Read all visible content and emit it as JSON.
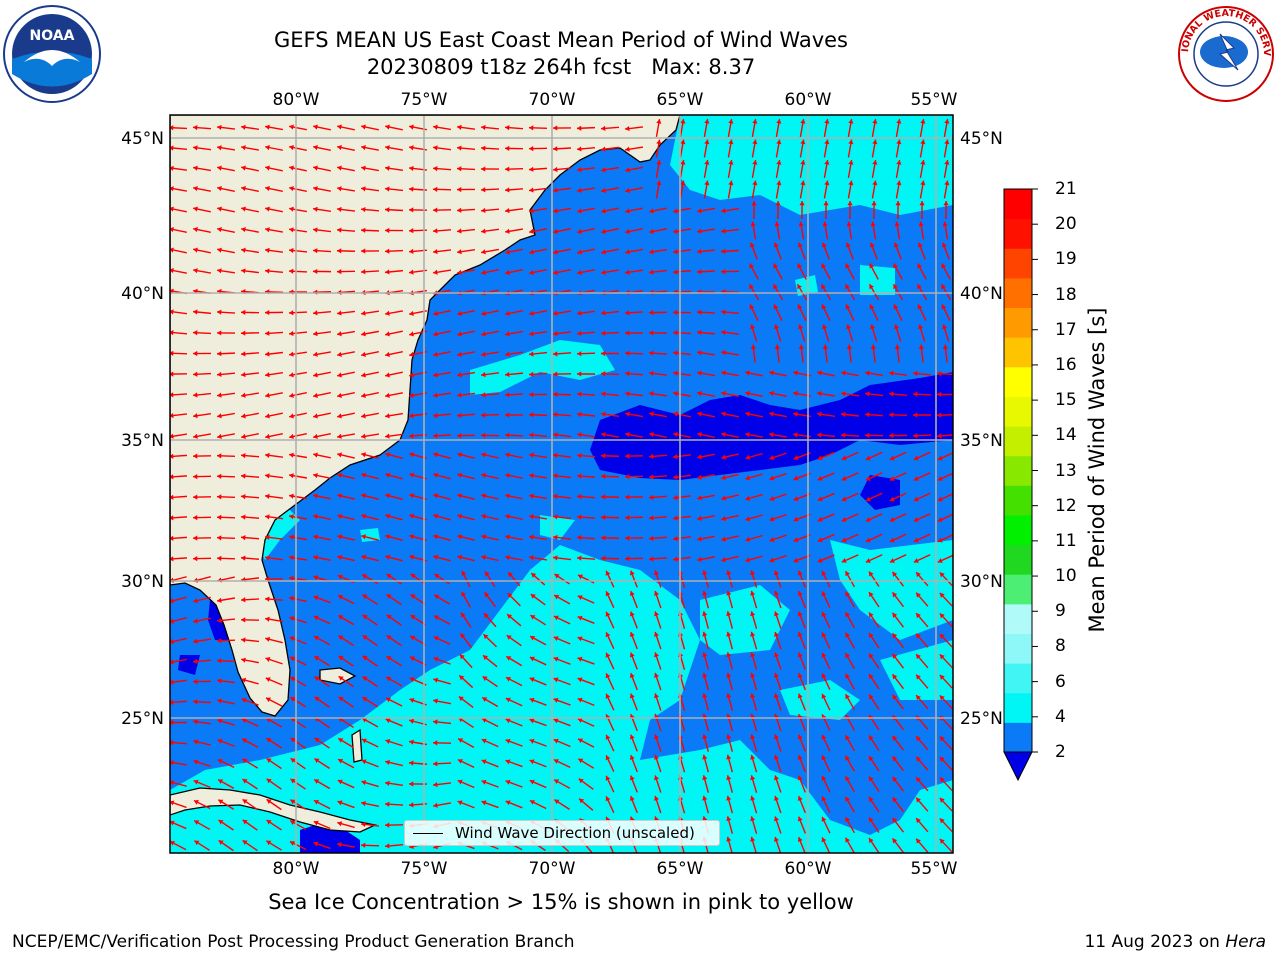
{
  "title": {
    "line1": "GEFS MEAN US East Coast Mean Period of Wind Waves",
    "run": "20230809 t18z 264h fcst",
    "max": "Max: 8.37"
  },
  "logos": {
    "left": "NOAA",
    "right": "NATIONAL WEATHER SERVICE"
  },
  "axes": {
    "lon_ticks": [
      "80°W",
      "75°W",
      "70°W",
      "65°W",
      "60°W",
      "55°W"
    ],
    "lat_ticks": [
      "45°N",
      "40°N",
      "35°N",
      "30°N",
      "25°N"
    ],
    "lon_range": [
      -85,
      -54.3
    ],
    "lat_range": [
      20.5,
      46
    ]
  },
  "colorbar": {
    "label": "Mean Period of Wind Waves [s]",
    "ticks": [
      "2",
      "4",
      "6",
      "8",
      "9",
      "10",
      "11",
      "12",
      "13",
      "14",
      "15",
      "16",
      "17",
      "18",
      "19",
      "20",
      "21"
    ],
    "colors": [
      "#0a7af7",
      "#00f5f5",
      "#42f5f5",
      "#8ef7f7",
      "#b0fafa",
      "#4cef74",
      "#1fd81f",
      "#00f000",
      "#44e000",
      "#88e800",
      "#c4f000",
      "#e8f800",
      "#ffff00",
      "#ffc400",
      "#ff9a00",
      "#ff7000",
      "#ff4400",
      "#ff1100",
      "#ff0000"
    ],
    "extend_color": "#0000e8"
  },
  "legend": {
    "label": "Wind Wave Direction (unscaled)"
  },
  "subtitle": "Sea Ice Concentration > 15% is shown in pink to yellow",
  "footer": {
    "left": "NCEP/EMC/Verification Post Processing Product Generation Branch",
    "date": "11 Aug 2023 on ",
    "machine": "Hera"
  },
  "map_colors": {
    "land": "#efeedd",
    "period_2_4": "#0a7af7",
    "period_4_6": "#00f5f5",
    "period_lt_2": "#0000e8",
    "arrow": "#ff0000",
    "grid": "#b0b0b0"
  }
}
